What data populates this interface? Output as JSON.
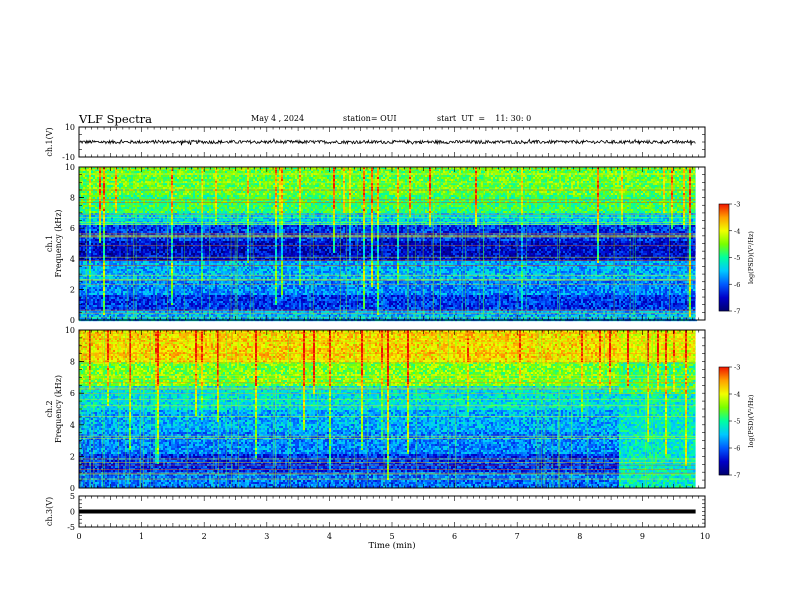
{
  "header": {
    "title": "VLF Spectra",
    "date": "May 4 , 2024",
    "station": "station= OUI",
    "start": "start  UT  =    11: 30: 0"
  },
  "chart_data": [
    {
      "type": "line",
      "name": "ch1-waveform",
      "ylabel": "ch.1(V)",
      "ylim": [
        -10,
        10
      ],
      "y_ticks": [
        "10",
        "-10"
      ],
      "xlim": [
        0,
        10
      ],
      "x_end": 9.85,
      "approx_level": 0,
      "amplitude_range": [
        -3,
        3
      ]
    },
    {
      "type": "heatmap",
      "name": "ch1-spectrogram",
      "ylabel": "ch.1\nFrequency (kHz)",
      "ylim": [
        0,
        10
      ],
      "y_ticks": [
        "0",
        "2",
        "4",
        "6",
        "8",
        "10"
      ],
      "xlim": [
        0,
        10
      ],
      "x_end": 9.85,
      "colorbar": {
        "label": "log(PSD)(V²/Hz)",
        "range": [
          -7,
          -3
        ],
        "ticks": [
          "-3",
          "-4",
          "-5",
          "-6",
          "-7"
        ]
      },
      "bands": [
        {
          "f": [
            0.0,
            0.6
          ],
          "level": -5.6
        },
        {
          "f": [
            0.6,
            1.6
          ],
          "level": -6.2
        },
        {
          "f": [
            1.6,
            2.6
          ],
          "level": -5.8
        },
        {
          "f": [
            2.6,
            3.8
          ],
          "level": -5.6
        },
        {
          "f": [
            3.8,
            5.2
          ],
          "level": -6.5
        },
        {
          "f": [
            5.2,
            6.2
          ],
          "level": -6.2
        },
        {
          "f": [
            6.2,
            7.0
          ],
          "level": -5.4
        },
        {
          "f": [
            7.0,
            8.2
          ],
          "level": -4.8
        },
        {
          "f": [
            8.2,
            10.0
          ],
          "level": -4.6
        }
      ]
    },
    {
      "type": "heatmap",
      "name": "ch2-spectrogram",
      "ylabel": "ch.2\nFrequency (kHz)",
      "ylim": [
        0,
        10
      ],
      "y_ticks": [
        "0",
        "2",
        "4",
        "6",
        "8",
        "10"
      ],
      "xlim": [
        0,
        10
      ],
      "x_end": 9.85,
      "colorbar": {
        "label": "log(PSD)(V²/Hz)",
        "range": [
          -7,
          -3
        ],
        "ticks": [
          "-3",
          "-4",
          "-5",
          "-6",
          "-7"
        ]
      },
      "bands": [
        {
          "f": [
            0.0,
            1.0
          ],
          "level": -5.9
        },
        {
          "f": [
            1.0,
            2.2
          ],
          "level": -6.2
        },
        {
          "f": [
            2.2,
            3.5
          ],
          "level": -5.8
        },
        {
          "f": [
            3.5,
            5.0
          ],
          "level": -5.6
        },
        {
          "f": [
            5.0,
            6.4
          ],
          "level": -5.3
        },
        {
          "f": [
            6.4,
            8.0
          ],
          "level": -4.5
        },
        {
          "f": [
            8.0,
            10.0
          ],
          "level": -3.8
        }
      ],
      "change_after_min": 8.6
    },
    {
      "type": "line",
      "name": "ch3-waveform",
      "ylabel": "ch.3(V)",
      "ylim": [
        -5,
        5
      ],
      "y_ticks": [
        "5",
        "0",
        "-5"
      ],
      "xlim": [
        0,
        10
      ],
      "x_end": 9.85,
      "approx_level": 0,
      "xlabel": "Time (min)",
      "x_ticks": [
        "0",
        "1",
        "2",
        "3",
        "4",
        "5",
        "6",
        "7",
        "8",
        "9",
        "10"
      ]
    }
  ]
}
